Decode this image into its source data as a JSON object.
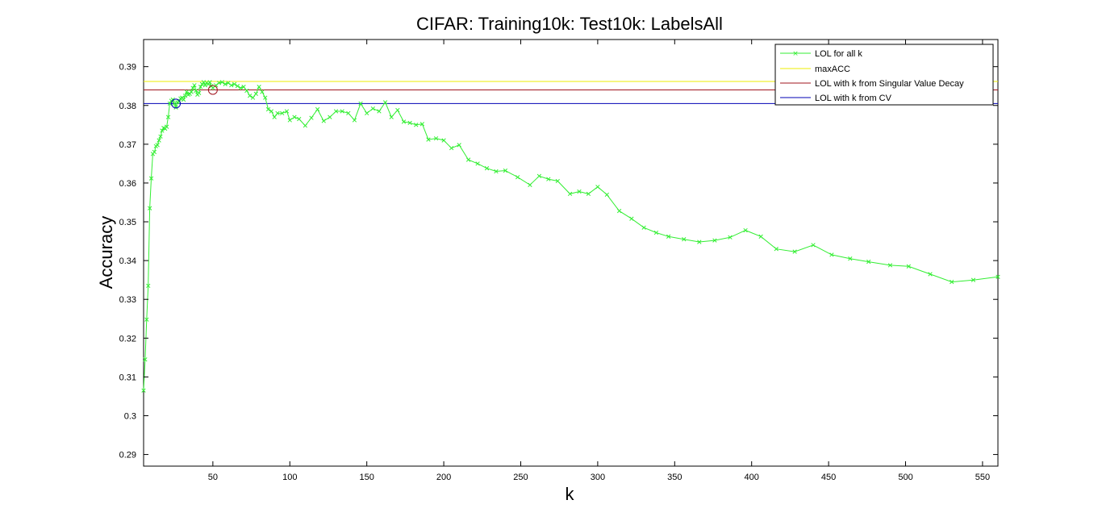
{
  "chart_data": {
    "type": "line",
    "title": "CIFAR: Training10k: Test10k: LabelsAll",
    "xlabel": "k",
    "ylabel": "Accuracy",
    "xlim": [
      5,
      560
    ],
    "ylim": [
      0.287,
      0.397
    ],
    "xticks": [
      50,
      100,
      150,
      200,
      250,
      300,
      350,
      400,
      450,
      500,
      550
    ],
    "yticks": [
      0.29,
      0.3,
      0.31,
      0.32,
      0.33,
      0.34,
      0.35,
      0.36,
      0.37,
      0.38,
      0.39
    ],
    "ytick_labels": [
      "0.29",
      "0.3",
      "0.31",
      "0.32",
      "0.33",
      "0.34",
      "0.35",
      "0.36",
      "0.37",
      "0.38",
      "0.39"
    ],
    "grid": false,
    "legend_position": "top-right",
    "colors": {
      "lol": "#33ee33",
      "maxacc": "#eeee00",
      "svd": "#a0141e",
      "cv": "#0000b4"
    },
    "series": [
      {
        "name": "LOL for all k",
        "key": "lol",
        "marker": "x",
        "x": [
          5,
          6,
          7,
          8,
          9,
          10,
          11,
          12,
          13,
          14,
          15,
          16,
          17,
          18,
          19,
          20,
          21,
          22,
          23,
          24,
          25,
          26,
          27,
          28,
          29,
          30,
          31,
          32,
          33,
          34,
          35,
          36,
          37,
          38,
          39,
          40,
          41,
          42,
          43,
          44,
          45,
          46,
          47,
          48,
          49,
          50,
          52,
          54,
          56,
          58,
          60,
          62,
          64,
          66,
          68,
          70,
          72,
          74,
          76,
          78,
          80,
          82,
          84,
          86,
          88,
          90,
          92,
          95,
          98,
          100,
          103,
          106,
          110,
          114,
          118,
          122,
          126,
          130,
          134,
          138,
          142,
          146,
          150,
          154,
          158,
          162,
          166,
          170,
          174,
          178,
          182,
          186,
          190,
          195,
          200,
          205,
          210,
          216,
          222,
          228,
          234,
          240,
          248,
          256,
          262,
          268,
          274,
          282,
          288,
          294,
          300,
          306,
          314,
          322,
          330,
          338,
          346,
          356,
          366,
          376,
          386,
          396,
          406,
          416,
          428,
          440,
          452,
          464,
          476,
          490,
          502,
          516,
          530,
          544,
          560
        ],
        "values": [
          0.3065,
          0.3145,
          0.3248,
          0.3335,
          0.3535,
          0.3612,
          0.3675,
          0.368,
          0.3695,
          0.3698,
          0.371,
          0.372,
          0.3735,
          0.3742,
          0.374,
          0.3745,
          0.377,
          0.3805,
          0.3812,
          0.3815,
          0.3805,
          0.3795,
          0.3808,
          0.381,
          0.3818,
          0.382,
          0.3815,
          0.3825,
          0.3835,
          0.3828,
          0.383,
          0.3835,
          0.3845,
          0.3852,
          0.3838,
          0.3828,
          0.3832,
          0.3848,
          0.3855,
          0.386,
          0.3852,
          0.3858,
          0.3855,
          0.386,
          0.385,
          0.3845,
          0.3852,
          0.3858,
          0.386,
          0.3855,
          0.3858,
          0.3852,
          0.3855,
          0.385,
          0.3845,
          0.3848,
          0.3838,
          0.3825,
          0.382,
          0.383,
          0.3848,
          0.3835,
          0.382,
          0.379,
          0.3785,
          0.377,
          0.378,
          0.378,
          0.3785,
          0.3762,
          0.377,
          0.3765,
          0.3748,
          0.3768,
          0.379,
          0.376,
          0.377,
          0.3785,
          0.3785,
          0.378,
          0.3762,
          0.3805,
          0.378,
          0.3792,
          0.3785,
          0.3808,
          0.377,
          0.3788,
          0.3758,
          0.3755,
          0.375,
          0.3752,
          0.3712,
          0.3715,
          0.371,
          0.369,
          0.3698,
          0.366,
          0.365,
          0.3638,
          0.363,
          0.3632,
          0.3615,
          0.3595,
          0.3618,
          0.361,
          0.3605,
          0.3572,
          0.3578,
          0.3572,
          0.359,
          0.357,
          0.3528,
          0.3508,
          0.3485,
          0.3472,
          0.3462,
          0.3455,
          0.3448,
          0.3452,
          0.346,
          0.3478,
          0.3462,
          0.343,
          0.3423,
          0.344,
          0.3415,
          0.3405,
          0.3397,
          0.3388,
          0.3385,
          0.3365,
          0.3345,
          0.335,
          0.3358
        ]
      },
      {
        "name": "maxACC",
        "key": "maxacc",
        "type": "hline",
        "value": 0.3862
      },
      {
        "name": "LOL with k from Singular Value Decay",
        "key": "svd",
        "type": "hline",
        "value": 0.384,
        "point": {
          "x": 50,
          "y": 0.384
        }
      },
      {
        "name": "LOL with k from CV",
        "key": "cv",
        "type": "hline",
        "value": 0.3805,
        "point": {
          "x": 26,
          "y": 0.3805
        }
      }
    ]
  }
}
